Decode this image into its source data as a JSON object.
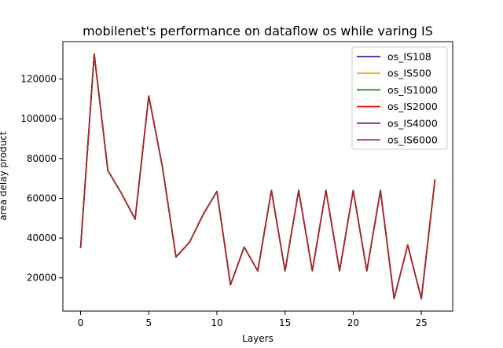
{
  "chart_data": {
    "type": "line",
    "title": "mobilenet's performance on dataflow os while varing IS",
    "xlabel": "Layers",
    "ylabel": "area delay product",
    "xlim": [
      -1.3,
      27.3
    ],
    "ylim": [
      3300,
      138800
    ],
    "xticks": [
      0,
      5,
      10,
      15,
      20,
      25
    ],
    "yticks": [
      20000,
      40000,
      60000,
      80000,
      100000,
      120000
    ],
    "grid": false,
    "legend_position": "top-right",
    "x": [
      0,
      1,
      2,
      3,
      4,
      5,
      6,
      7,
      8,
      9,
      10,
      11,
      12,
      13,
      14,
      15,
      16,
      17,
      18,
      19,
      20,
      21,
      22,
      23,
      24,
      25,
      26
    ],
    "series": [
      {
        "name": "os_IS108",
        "color": "#0000cc",
        "values": [
          35000,
          132500,
          74000,
          62500,
          49500,
          111500,
          76000,
          30500,
          38000,
          52000,
          63500,
          16500,
          35500,
          23500,
          64000,
          23500,
          64000,
          23500,
          64000,
          23500,
          64000,
          23500,
          64000,
          9500,
          36500,
          9500,
          69500
        ]
      },
      {
        "name": "os_IS500",
        "color": "#ffa500",
        "values": [
          35000,
          132500,
          74000,
          62500,
          49500,
          111500,
          76000,
          30500,
          38000,
          52000,
          63500,
          16500,
          35500,
          23500,
          64000,
          23500,
          64000,
          23500,
          64000,
          23500,
          64000,
          23500,
          64000,
          9500,
          36500,
          9500,
          69500
        ]
      },
      {
        "name": "os_IS1000",
        "color": "#008000",
        "values": [
          35000,
          132500,
          74000,
          62500,
          49500,
          111500,
          76000,
          30500,
          38000,
          52000,
          63500,
          16500,
          35500,
          23500,
          64000,
          23500,
          64000,
          23500,
          64000,
          23500,
          64000,
          23500,
          64000,
          9500,
          36500,
          9500,
          69500
        ]
      },
      {
        "name": "os_IS2000",
        "color": "#ff0000",
        "values": [
          35000,
          132500,
          74000,
          62500,
          49500,
          111500,
          76000,
          30500,
          38000,
          52000,
          63500,
          16500,
          35500,
          23500,
          64000,
          23500,
          64000,
          23500,
          64000,
          23500,
          64000,
          23500,
          64000,
          9500,
          36500,
          9500,
          69500
        ]
      },
      {
        "name": "os_IS4000",
        "color": "#800080",
        "values": [
          35000,
          132500,
          74000,
          62500,
          49500,
          111500,
          76000,
          30500,
          38000,
          52000,
          63500,
          16500,
          35500,
          23500,
          64000,
          23500,
          64000,
          23500,
          64000,
          23500,
          64000,
          23500,
          64000,
          9500,
          36500,
          9500,
          69500
        ]
      },
      {
        "name": "os_IS6000",
        "color": "#a52a2a",
        "values": [
          35000,
          132500,
          74000,
          62500,
          49500,
          111500,
          76000,
          30500,
          38000,
          52000,
          63500,
          16500,
          35500,
          23500,
          64000,
          23500,
          64000,
          23500,
          64000,
          23500,
          64000,
          23500,
          64000,
          9500,
          36500,
          9500,
          69500
        ]
      }
    ]
  }
}
